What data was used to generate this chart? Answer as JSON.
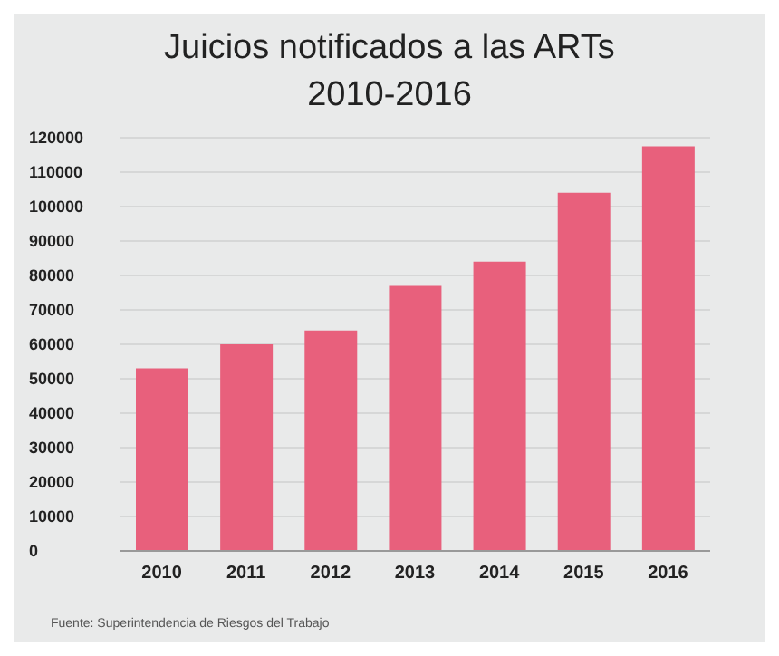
{
  "chart_data": {
    "type": "bar",
    "title": "Juicios notificados a las ARTs\n2010-2016",
    "categories": [
      "2010",
      "2011",
      "2012",
      "2013",
      "2014",
      "2015",
      "2016"
    ],
    "values": [
      53000,
      60000,
      64000,
      77000,
      84000,
      104000,
      117500
    ],
    "color": "#e8607c",
    "ylim": [
      0,
      120000
    ],
    "yticks": [
      0,
      10000,
      20000,
      30000,
      40000,
      50000,
      60000,
      70000,
      80000,
      90000,
      100000,
      110000,
      120000
    ],
    "grid": "y",
    "annotations": [
      "Fuente: Superintendencia de Riesgos del Trabajo"
    ]
  }
}
